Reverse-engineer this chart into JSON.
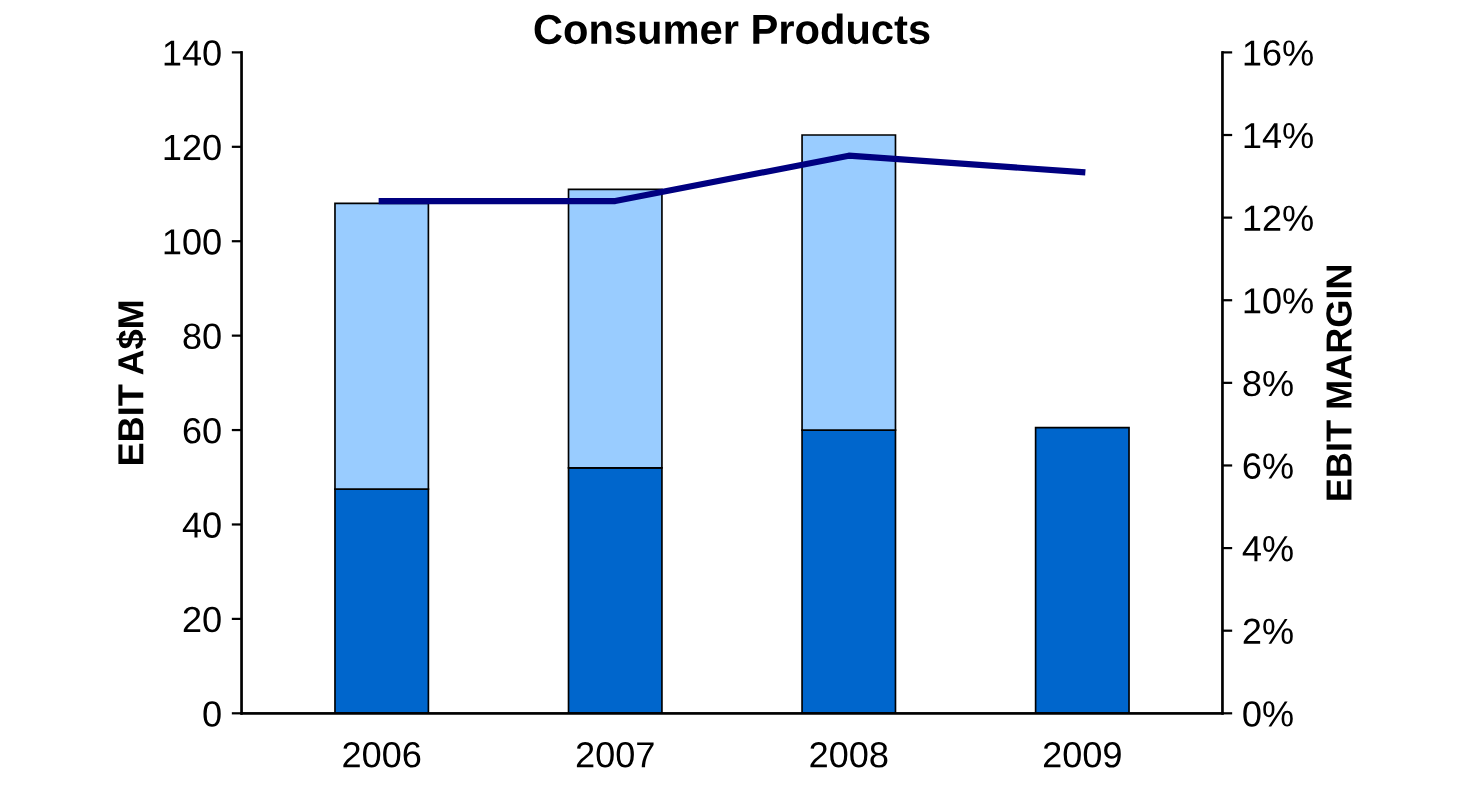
{
  "chart_data": {
    "type": "bar",
    "title": "Consumer Products",
    "ylabel": "EBIT A$M",
    "y2label": "EBIT MARGIN",
    "categories": [
      "2006",
      "2007",
      "2008",
      "2009"
    ],
    "stacked": true,
    "series": [
      {
        "color": "#0066cc",
        "values": [
          47.5,
          52,
          60,
          60.5
        ]
      },
      {
        "color": "#99ccff",
        "values": [
          60.5,
          59,
          62.5,
          null
        ]
      },
      {
        "type": "line",
        "axis": "y2",
        "color": "#000080",
        "values": [
          12.4,
          12.4,
          13.5,
          13.1
        ]
      }
    ],
    "ylim": [
      0,
      140
    ],
    "yticks": [
      0,
      20,
      40,
      60,
      80,
      100,
      120,
      140
    ],
    "y2lim": [
      0,
      16
    ],
    "y2ticks": [
      {
        "value": 0,
        "label": "0%"
      },
      {
        "value": 2,
        "label": "2%"
      },
      {
        "value": 4,
        "label": "4%"
      },
      {
        "value": 6,
        "label": "6%"
      },
      {
        "value": 8,
        "label": "8%"
      },
      {
        "value": 10,
        "label": "10%"
      },
      {
        "value": 12,
        "label": "12%"
      },
      {
        "value": 14,
        "label": "14%"
      },
      {
        "value": 16,
        "label": "16%"
      }
    ],
    "grid": false
  }
}
